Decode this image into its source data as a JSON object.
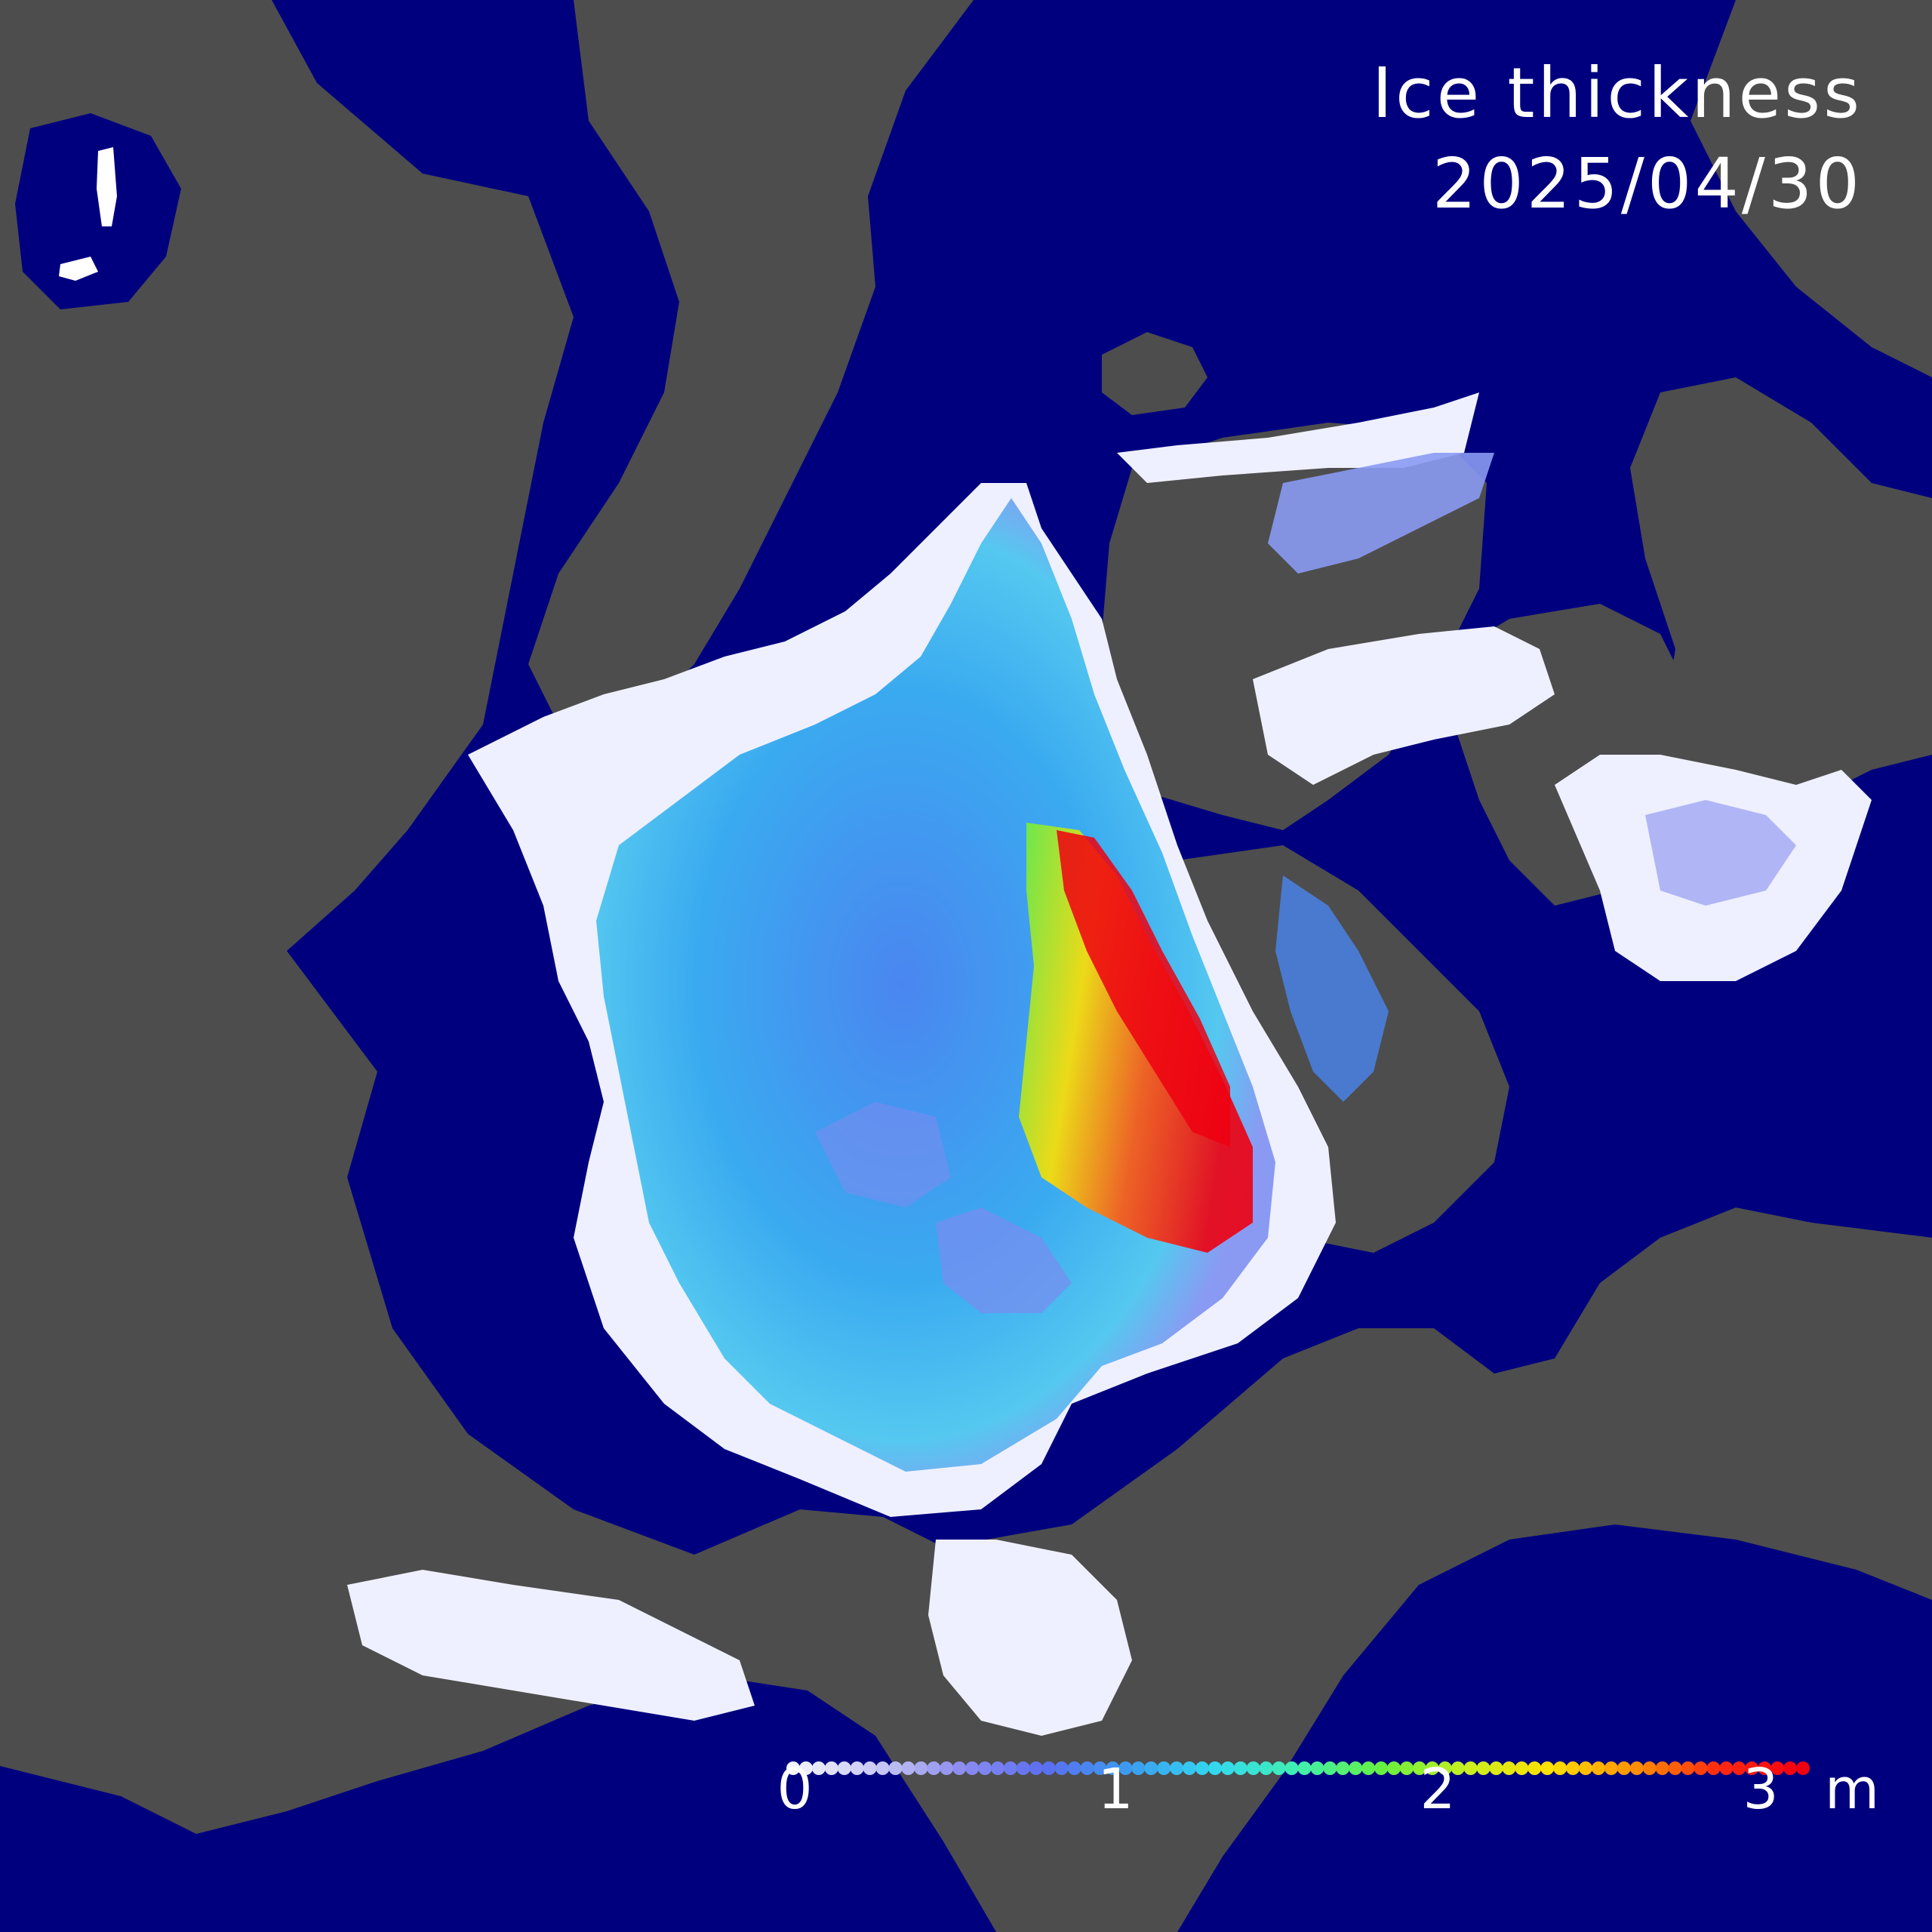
{
  "title": "Ice thickness",
  "date": "2025/04/30",
  "colors": {
    "ocean": "#00007f",
    "land": "#4d4d4d",
    "thin_ice": "#eef0ff"
  },
  "legend": {
    "ticks": [
      "0",
      "1",
      "2",
      "3"
    ],
    "unit": "m",
    "range": [
      0,
      3
    ],
    "colors": [
      "#f4f4ff",
      "#c8c8f5",
      "#8c8cf0",
      "#5a6ef0",
      "#3c9cf0",
      "#33d8f0",
      "#40f0b0",
      "#66f040",
      "#c8f020",
      "#ffe000",
      "#ff9000",
      "#ff2a10",
      "#f00010"
    ]
  }
}
